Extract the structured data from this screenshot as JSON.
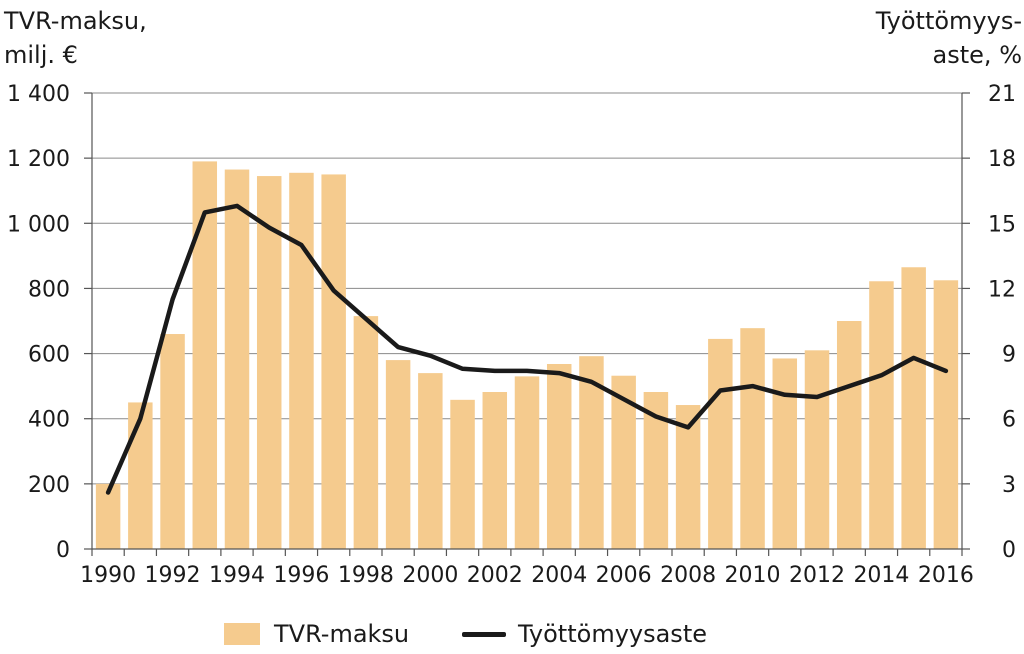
{
  "chart_data": {
    "type": "bar",
    "ylabel_left": "TVR-maksu,\nmilj. €",
    "ylabel_right": "Työttömyys-\naste, %",
    "ylim_left": [
      0,
      1400
    ],
    "ylim_right": [
      0,
      21
    ],
    "yticks_left": [
      "0",
      "200",
      "400",
      "600",
      "800",
      "1 000",
      "1 200",
      "1 400"
    ],
    "yticks_right": [
      "0",
      "3",
      "6",
      "9",
      "12",
      "15",
      "18",
      "21"
    ],
    "xtick_labels": [
      "1990",
      "1992",
      "1994",
      "1996",
      "1998",
      "2000",
      "2002",
      "2004",
      "2006",
      "2008",
      "2010",
      "2012",
      "2014",
      "2016"
    ],
    "categories": [
      1990,
      1991,
      1992,
      1993,
      1994,
      1995,
      1996,
      1997,
      1998,
      1999,
      2000,
      2001,
      2002,
      2003,
      2004,
      2005,
      2006,
      2007,
      2008,
      2009,
      2010,
      2011,
      2012,
      2013,
      2014,
      2015,
      2016
    ],
    "series": [
      {
        "name": "TVR-maksu",
        "type": "bar",
        "axis": "left",
        "color": "#f5cb8e",
        "values": [
          200,
          450,
          660,
          1190,
          1165,
          1145,
          1155,
          1150,
          715,
          580,
          540,
          458,
          482,
          530,
          568,
          592,
          532,
          482,
          442,
          645,
          678,
          585,
          610,
          700,
          822,
          865,
          825
        ]
      },
      {
        "name": "Työttömyysaste",
        "type": "line",
        "axis": "right",
        "color": "#1a1a1a",
        "values": [
          2.6,
          6.0,
          11.5,
          15.5,
          15.8,
          14.8,
          14.0,
          11.9,
          10.6,
          9.3,
          8.9,
          8.3,
          8.2,
          8.2,
          8.1,
          7.7,
          6.9,
          6.1,
          5.6,
          7.3,
          7.5,
          7.1,
          7.0,
          7.5,
          8.0,
          8.8,
          8.2
        ]
      }
    ],
    "grid": true,
    "legend_position": "bottom"
  }
}
